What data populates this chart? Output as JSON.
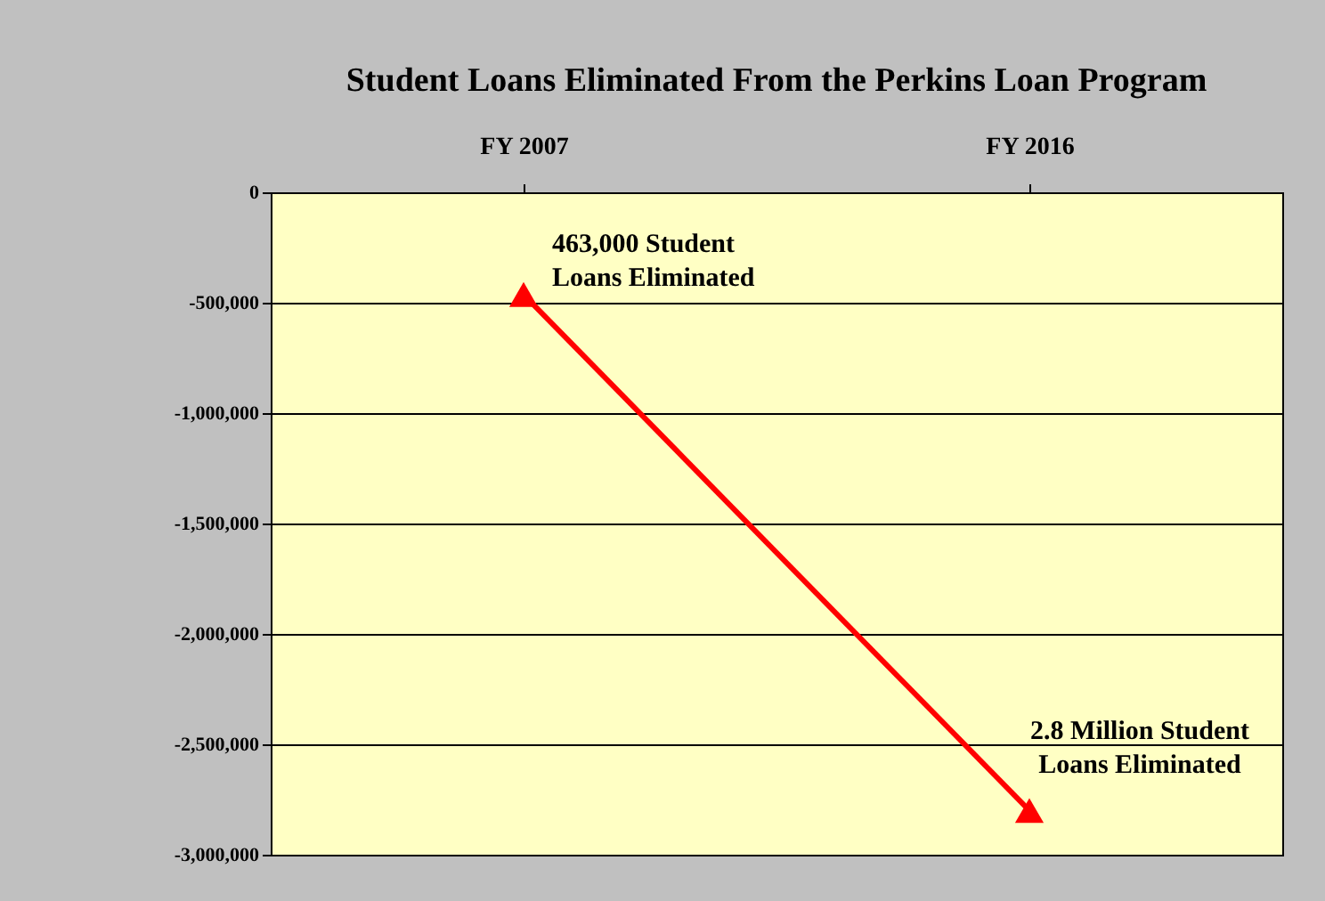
{
  "chart_data": {
    "type": "line",
    "title": "Student Loans Eliminated From the Perkins Loan Program",
    "categories": [
      "FY 2007",
      "FY 2016"
    ],
    "series": [
      {
        "color": "#ff0000",
        "values": [
          -463000,
          -2800000
        ]
      }
    ],
    "ylim": [
      -3000000,
      0
    ],
    "yticks": [
      0,
      {
        "value": -500000,
        "label": "-500,000"
      },
      {
        "value": -1000000,
        "label": "-1,000,000"
      },
      {
        "value": -1500000,
        "label": "-1,500,000"
      },
      {
        "value": -2000000,
        "label": "-2,000,000"
      },
      {
        "value": -2500000,
        "label": "-2,500,000"
      },
      {
        "value": -3000000,
        "label": "-3,000,000"
      }
    ],
    "grid": "y",
    "marker": "triangle",
    "line_style": "solid",
    "annotations": [
      {
        "text": "463,000 Student\nLoans Eliminated",
        "x": "FY 2007",
        "y": -463000
      },
      {
        "text": "2.8 Million Student\nLoans Eliminated",
        "x": "FY 2016",
        "y": -2800000
      }
    ]
  }
}
